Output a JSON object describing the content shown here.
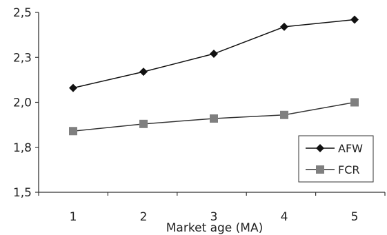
{
  "chart_data": {
    "type": "line",
    "title": "",
    "xlabel": "Market age (MA)",
    "ylabel": "",
    "x": [
      1,
      2,
      3,
      4,
      5
    ],
    "x_tick_labels": [
      "1",
      "2",
      "3",
      "4",
      "5"
    ],
    "ylim": [
      1.5,
      2.5
    ],
    "y_ticks": [
      1.5,
      1.75,
      2.0,
      2.25,
      2.5
    ],
    "y_tick_labels": [
      "1,5",
      "1,8",
      "2,0",
      "2,3",
      "2,5"
    ],
    "grid": false,
    "legend_position": "bottom-right",
    "series": [
      {
        "name": "AFW",
        "values": [
          2.08,
          2.17,
          2.27,
          2.42,
          2.46
        ],
        "marker": "diamond",
        "color": "#111111"
      },
      {
        "name": "FCR",
        "values": [
          1.84,
          1.88,
          1.91,
          1.93,
          2.0
        ],
        "marker": "square",
        "color": "#7f7f7f"
      }
    ]
  }
}
